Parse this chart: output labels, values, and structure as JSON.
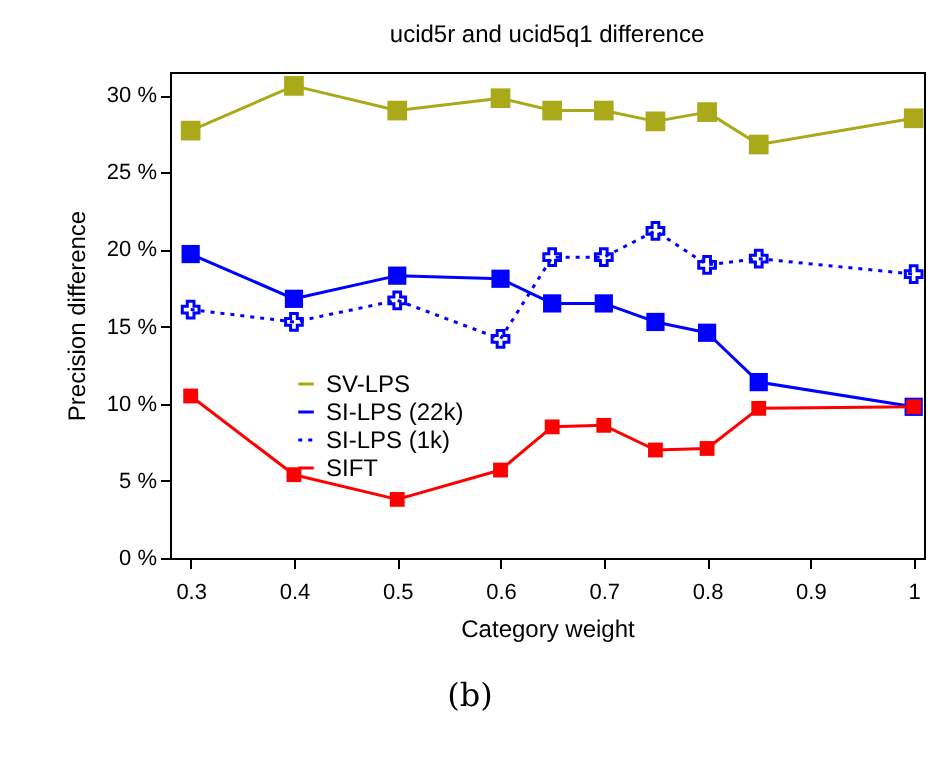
{
  "chart_data": {
    "type": "line",
    "title": "ucid5r and ucid5q1 difference",
    "xlabel": "Category weight",
    "ylabel": "Precision difference",
    "annotations": [
      "(b)"
    ],
    "x": [
      0.3,
      0.4,
      0.5,
      0.6,
      0.65,
      0.7,
      0.75,
      0.8,
      0.85,
      1.0
    ],
    "series": [
      {
        "name": "SV-LPS",
        "color": "#a9a91a",
        "marker": "square",
        "line_style": "solid",
        "values": [
          27.7,
          30.6,
          29.0,
          29.8,
          29.0,
          29.0,
          28.3,
          28.9,
          26.8,
          28.5
        ]
      },
      {
        "name": "SI-LPS (22k)",
        "color": "#0000ff",
        "marker": "square",
        "line_style": "solid",
        "values": [
          19.7,
          16.8,
          18.3,
          18.1,
          16.5,
          16.5,
          15.3,
          14.6,
          11.4,
          9.8
        ]
      },
      {
        "name": "SI-LPS (1k)",
        "color": "#0000ff",
        "marker": "cross",
        "line_style": "dotted",
        "values": [
          16.1,
          15.3,
          16.7,
          14.2,
          19.5,
          19.5,
          21.2,
          19.0,
          19.4,
          18.4
        ]
      },
      {
        "name": "SIFT",
        "color": "#ff0000",
        "marker": "square",
        "line_style": "solid",
        "values": [
          10.5,
          5.4,
          3.8,
          5.7,
          8.5,
          8.6,
          7.0,
          7.1,
          9.7,
          9.8
        ]
      }
    ],
    "xlim": [
      0.28,
      1.01
    ],
    "xticks": [
      0.3,
      0.4,
      0.5,
      0.6,
      0.7,
      0.8,
      0.9,
      1
    ],
    "ylim": [
      0,
      31.5
    ],
    "yticks": [
      {
        "value": 0,
        "label": "0 %"
      },
      {
        "value": 5,
        "label": "5 %"
      },
      {
        "value": 10,
        "label": "10 %"
      },
      {
        "value": 15,
        "label": "15 %"
      },
      {
        "value": 20,
        "label": "20 %"
      },
      {
        "value": 25,
        "label": "25 %"
      },
      {
        "value": 30,
        "label": "30 %"
      }
    ],
    "grid": false,
    "legend": "left"
  }
}
